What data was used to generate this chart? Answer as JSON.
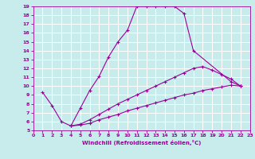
{
  "xlabel": "Windchill (Refroidissement éolien,°C)",
  "bg_color": "#c8ecec",
  "line_color": "#990099",
  "grid_color": "#ffffff",
  "xlim": [
    0,
    23
  ],
  "ylim": [
    5,
    19
  ],
  "xticks": [
    0,
    1,
    2,
    3,
    4,
    5,
    6,
    7,
    8,
    9,
    10,
    11,
    12,
    13,
    14,
    15,
    16,
    17,
    18,
    19,
    20,
    21,
    22,
    23
  ],
  "yticks": [
    5,
    6,
    7,
    8,
    9,
    10,
    11,
    12,
    13,
    14,
    15,
    16,
    17,
    18,
    19
  ],
  "series1": [
    [
      1,
      9.3
    ],
    [
      2,
      7.8
    ],
    [
      3,
      6.0
    ],
    [
      4,
      5.5
    ],
    [
      5,
      7.5
    ],
    [
      6,
      9.5
    ],
    [
      7,
      11.1
    ],
    [
      8,
      13.3
    ],
    [
      9,
      15.0
    ],
    [
      10,
      16.3
    ],
    [
      11,
      19.0
    ],
    [
      12,
      19.0
    ],
    [
      13,
      19.0
    ],
    [
      14,
      19.0
    ],
    [
      15,
      19.0
    ],
    [
      16,
      18.2
    ],
    [
      17,
      14.0
    ],
    [
      21,
      10.5
    ],
    [
      22,
      10.0
    ]
  ],
  "series2": [
    [
      4,
      5.5
    ],
    [
      5,
      5.6
    ],
    [
      6,
      5.8
    ],
    [
      7,
      6.2
    ],
    [
      8,
      6.5
    ],
    [
      9,
      6.8
    ],
    [
      10,
      7.2
    ],
    [
      11,
      7.5
    ],
    [
      12,
      7.8
    ],
    [
      13,
      8.1
    ],
    [
      14,
      8.4
    ],
    [
      15,
      8.7
    ],
    [
      16,
      9.0
    ],
    [
      17,
      9.2
    ],
    [
      18,
      9.5
    ],
    [
      19,
      9.7
    ],
    [
      20,
      9.9
    ],
    [
      21,
      10.1
    ],
    [
      22,
      10.0
    ]
  ],
  "series3": [
    [
      4,
      5.5
    ],
    [
      5,
      5.7
    ],
    [
      6,
      6.2
    ],
    [
      7,
      6.8
    ],
    [
      8,
      7.4
    ],
    [
      9,
      8.0
    ],
    [
      10,
      8.5
    ],
    [
      11,
      9.0
    ],
    [
      12,
      9.5
    ],
    [
      13,
      10.0
    ],
    [
      14,
      10.5
    ],
    [
      15,
      11.0
    ],
    [
      16,
      11.5
    ],
    [
      17,
      12.0
    ],
    [
      18,
      12.2
    ],
    [
      19,
      11.8
    ],
    [
      20,
      11.3
    ],
    [
      21,
      10.8
    ],
    [
      22,
      10.0
    ]
  ]
}
